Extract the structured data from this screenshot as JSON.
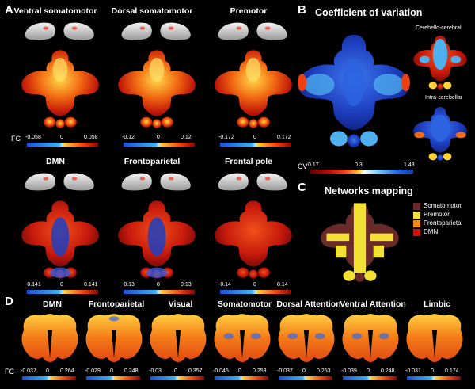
{
  "panel_letters": {
    "a": "A",
    "b": "B",
    "c": "C",
    "d": "D"
  },
  "panel_a": {
    "maps": [
      {
        "title": "Ventral somatomotor",
        "min": "-0.058",
        "zero": "0",
        "max": "0.058"
      },
      {
        "title": "Dorsal somatomotor",
        "min": "-0.12",
        "zero": "0",
        "max": "0.12"
      },
      {
        "title": "Premotor",
        "min": "-0.172",
        "zero": "0",
        "max": "0.172"
      },
      {
        "title": "DMN",
        "min": "-0.141",
        "zero": "0",
        "max": "0.141"
      },
      {
        "title": "Frontoparietal",
        "min": "-0.13",
        "zero": "0",
        "max": "0.13"
      },
      {
        "title": "Frontal pole",
        "min": "-0.14",
        "zero": "0",
        "max": "0.14"
      }
    ],
    "fc_label": "FC"
  },
  "panel_b": {
    "title": "Coefficient of variation",
    "sub1": "Cerebello-cerebral",
    "sub2": "Intra-cerebellar",
    "cv_label": "CV",
    "cv_min": "0.17",
    "cv_mid": "0.3",
    "cv_max": "1.43"
  },
  "panel_c": {
    "title": "Networks mapping",
    "legend": [
      {
        "label": "Somatomotor",
        "color": "#6b2a2a"
      },
      {
        "label": "Premotor",
        "color": "#f3e035"
      },
      {
        "label": "Frontoparietal",
        "color": "#f08a1a"
      },
      {
        "label": "DMN",
        "color": "#c81414"
      }
    ]
  },
  "panel_d": {
    "fc_label": "FC",
    "maps": [
      {
        "title": "DMN",
        "min": "-0.037",
        "zero": "0",
        "max": "0.264"
      },
      {
        "title": "Frontoparietal",
        "min": "-0.029",
        "zero": "0",
        "max": "0.248"
      },
      {
        "title": "Visual",
        "min": "-0.03",
        "zero": "0",
        "max": "0.357"
      },
      {
        "title": "Somatomotor",
        "min": "-0.045",
        "zero": "0",
        "max": "0.253"
      },
      {
        "title": "Dorsal Attention",
        "min": "-0.037",
        "zero": "0",
        "max": "0.253"
      },
      {
        "title": "Ventral Attention",
        "min": "-0.039",
        "zero": "0",
        "max": "0.248"
      },
      {
        "title": "Limbic",
        "min": "-0.031",
        "zero": "0",
        "max": "0.174"
      }
    ]
  }
}
